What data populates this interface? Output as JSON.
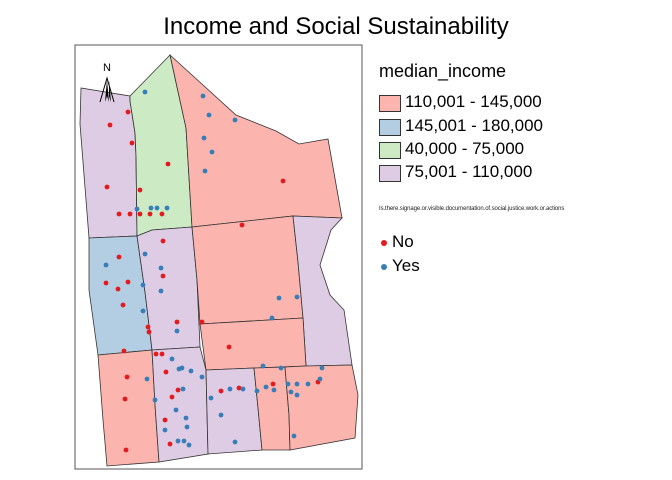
{
  "title": "Income and Social Sustainability",
  "north_arrow": {
    "label": "N",
    "icon": "north-arrow-icon"
  },
  "legend": {
    "title": "median_income",
    "classes": [
      {
        "label": "110,001 - 145,000",
        "color": "#FBB4AE"
      },
      {
        "label": "145,001 - 180,000",
        "color": "#B3CDE3"
      },
      {
        "label": "40,000 - 75,000",
        "color": "#CCEBC5"
      },
      {
        "label": "75,001 - 110,000",
        "color": "#DECBE4"
      }
    ]
  },
  "points_legend": {
    "title": "Is.there.signage.or.visible.documentation.of.social.justice.work.or.actions",
    "items": [
      {
        "label": "No",
        "color": "#E41A1C"
      },
      {
        "label": "Yes",
        "color": "#377EB8"
      }
    ]
  }
}
